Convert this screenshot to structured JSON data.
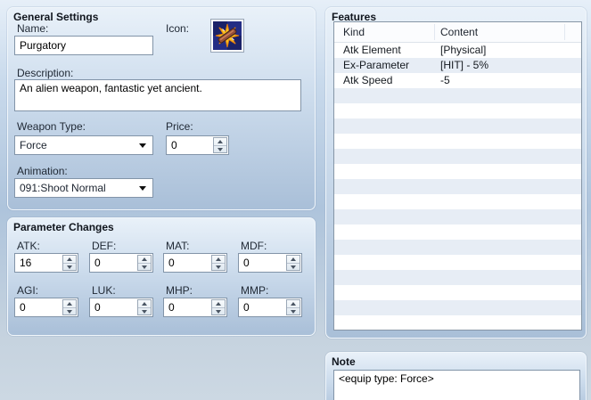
{
  "general": {
    "title": "General Settings",
    "name_label": "Name:",
    "name_value": "Purgatory",
    "icon_label": "Icon:",
    "icon_name": "weapon-starburst-icon",
    "description_label": "Description:",
    "description_value": "An alien weapon, fantastic yet ancient.",
    "weapon_type_label": "Weapon Type:",
    "weapon_type_value": "Force",
    "price_label": "Price:",
    "price_value": "0",
    "animation_label": "Animation:",
    "animation_value": "091:Shoot Normal"
  },
  "parameters": {
    "title": "Parameter Changes",
    "fields": [
      {
        "label": "ATK:",
        "value": "16"
      },
      {
        "label": "DEF:",
        "value": "0"
      },
      {
        "label": "MAT:",
        "value": "0"
      },
      {
        "label": "MDF:",
        "value": "0"
      },
      {
        "label": "AGI:",
        "value": "0"
      },
      {
        "label": "LUK:",
        "value": "0"
      },
      {
        "label": "MHP:",
        "value": "0"
      },
      {
        "label": "MMP:",
        "value": "0"
      }
    ]
  },
  "features": {
    "title": "Features",
    "columns": [
      "Kind",
      "Content"
    ],
    "rows": [
      {
        "kind": "Atk Element",
        "content": "[Physical]"
      },
      {
        "kind": "Ex-Parameter",
        "content": "[HIT] - 5%"
      },
      {
        "kind": "Atk Speed",
        "content": "-5"
      }
    ]
  },
  "note": {
    "title": "Note",
    "value": "<equip type: Force>"
  },
  "colors": {
    "groupbox_top": "#e9f1f9",
    "groupbox_bottom": "#a9bfd8",
    "table_row_stripe": "#e7edf5",
    "table_border": "#8696a6",
    "icon_navy_dark": "#1b2268",
    "icon_navy_light": "#242d85",
    "icon_star_gold": "#f6c51f",
    "icon_star_edge": "#e07b12",
    "icon_weapon_brown": "#96503a"
  }
}
